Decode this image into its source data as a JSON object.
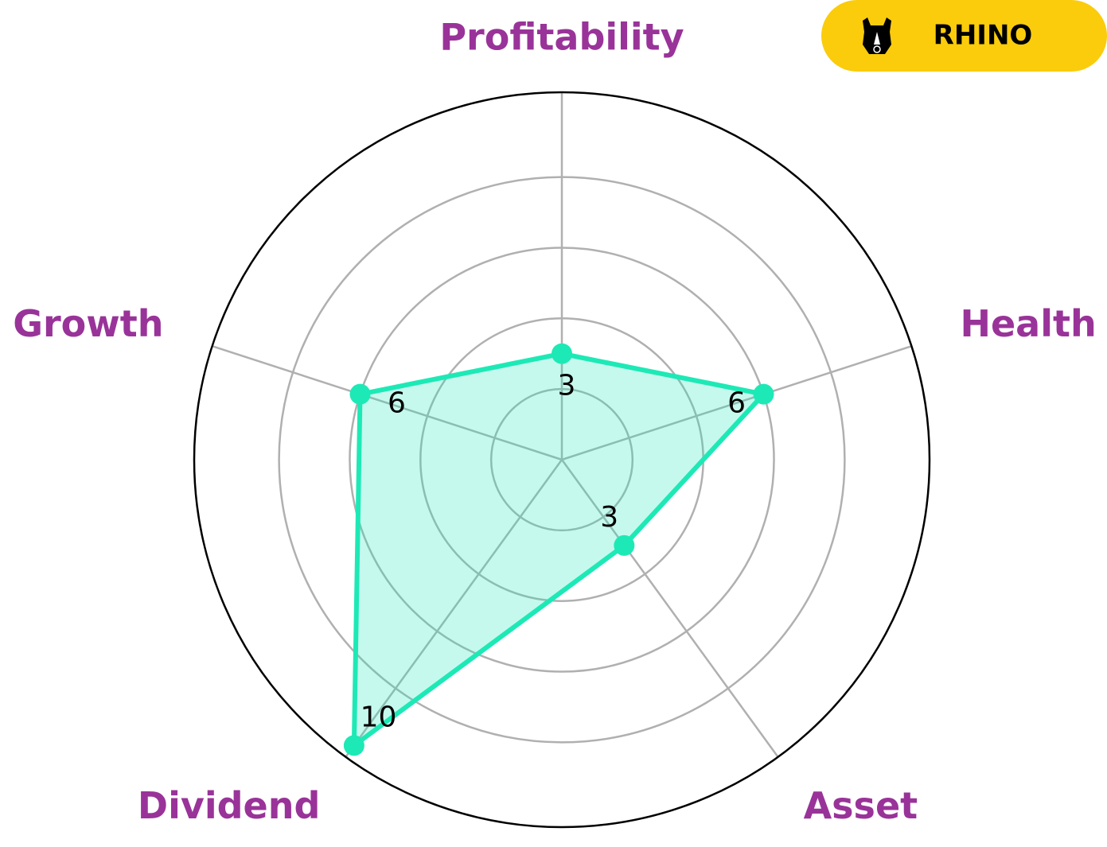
{
  "brand": "RHINO",
  "chart_data": {
    "type": "radar",
    "categories": [
      "Profitability",
      "Health",
      "Asset",
      "Dividend",
      "Growth"
    ],
    "values": [
      3,
      6,
      3,
      10,
      6
    ],
    "color": "#1de9b6",
    "ylim": [
      0,
      10.4
    ],
    "yticks": [
      2,
      4,
      6,
      8
    ],
    "grid": true
  }
}
